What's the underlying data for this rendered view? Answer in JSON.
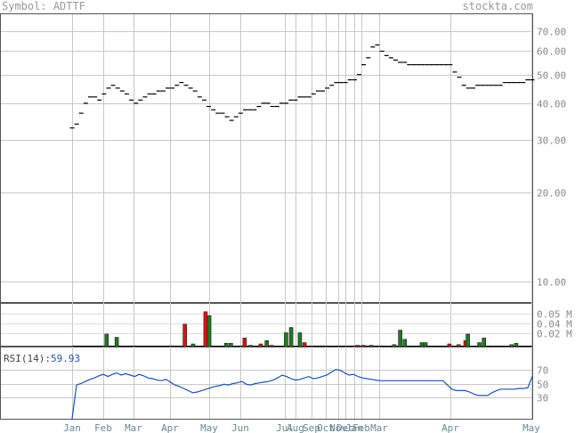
{
  "header": {
    "symbol_label": "Symbol:",
    "symbol": "ADTTF",
    "site": "stockta.com"
  },
  "chart_data": [
    {
      "type": "line",
      "name": "price",
      "yscale": "log",
      "ylim": [
        8.5,
        80
      ],
      "ytick_labels": [
        "70.00",
        "60.00",
        "50.00",
        "40.00",
        "30.00",
        "20.00",
        "10.00"
      ],
      "ytick_values": [
        70,
        60,
        50,
        40,
        30,
        20,
        10
      ],
      "x_labels": [
        "Jan",
        "Feb",
        "Mar",
        "Apr",
        "May",
        "Jun",
        "Jul",
        "Aug",
        "Sep",
        "Oct",
        "Nov",
        "Dec",
        "Jan",
        "Feb",
        "Mar",
        "Apr",
        "May"
      ],
      "values": [
        33,
        34,
        37,
        40,
        42,
        42,
        41,
        43,
        45,
        46,
        45,
        44,
        43,
        41,
        40,
        41,
        42,
        43,
        43,
        44,
        44,
        45,
        45,
        46,
        47,
        46,
        45,
        44,
        42,
        41,
        39,
        38,
        37,
        37,
        36,
        35,
        36,
        37,
        38,
        38,
        38,
        39,
        40,
        40,
        39,
        39,
        40,
        40,
        41,
        41,
        42,
        42,
        42,
        43,
        44,
        44,
        45,
        46,
        47,
        47,
        47,
        48,
        48,
        50,
        54,
        57,
        62,
        63,
        60,
        58,
        57,
        56,
        55,
        55,
        54,
        54,
        54,
        54,
        54,
        54,
        54,
        54,
        54,
        54,
        51,
        49,
        46,
        45,
        45,
        46,
        46,
        46,
        46,
        46,
        46,
        47,
        47,
        47,
        47,
        47,
        48,
        48
      ]
    },
    {
      "type": "bar",
      "name": "volume",
      "ylim": [
        0,
        0.065
      ],
      "ytick_labels": [
        "0.05 M",
        "0.04 M",
        "0.02 M"
      ],
      "ytick_values": [
        0.05,
        0.035,
        0.02
      ],
      "bars": [
        {
          "x": 0.075,
          "v": 0.019,
          "up": true
        },
        {
          "x": 0.097,
          "v": 0.014,
          "up": true
        },
        {
          "x": 0.245,
          "v": 0.034,
          "up": false
        },
        {
          "x": 0.263,
          "v": 0.004,
          "up": true
        },
        {
          "x": 0.29,
          "v": 0.053,
          "up": false
        },
        {
          "x": 0.298,
          "v": 0.047,
          "up": true
        },
        {
          "x": 0.335,
          "v": 0.005,
          "up": true
        },
        {
          "x": 0.345,
          "v": 0.005,
          "up": true
        },
        {
          "x": 0.375,
          "v": 0.013,
          "up": false
        },
        {
          "x": 0.388,
          "v": 0.002,
          "up": true
        },
        {
          "x": 0.41,
          "v": 0.004,
          "up": false
        },
        {
          "x": 0.423,
          "v": 0.009,
          "up": true
        },
        {
          "x": 0.433,
          "v": 0.002,
          "up": false
        },
        {
          "x": 0.465,
          "v": 0.021,
          "up": true
        },
        {
          "x": 0.476,
          "v": 0.029,
          "up": true
        },
        {
          "x": 0.495,
          "v": 0.021,
          "up": true
        },
        {
          "x": 0.505,
          "v": 0.006,
          "up": false
        },
        {
          "x": 0.62,
          "v": 0.002,
          "up": false
        },
        {
          "x": 0.633,
          "v": 0.002,
          "up": false
        },
        {
          "x": 0.65,
          "v": 0.002,
          "up": false
        },
        {
          "x": 0.7,
          "v": 0.003,
          "up": true
        },
        {
          "x": 0.713,
          "v": 0.025,
          "up": true
        },
        {
          "x": 0.723,
          "v": 0.011,
          "up": true
        },
        {
          "x": 0.76,
          "v": 0.006,
          "up": true
        },
        {
          "x": 0.768,
          "v": 0.006,
          "up": true
        },
        {
          "x": 0.82,
          "v": 0.004,
          "up": false
        },
        {
          "x": 0.84,
          "v": 0.003,
          "up": false
        },
        {
          "x": 0.855,
          "v": 0.009,
          "up": false
        },
        {
          "x": 0.86,
          "v": 0.019,
          "up": true
        },
        {
          "x": 0.885,
          "v": 0.006,
          "up": true
        },
        {
          "x": 0.895,
          "v": 0.013,
          "up": true
        },
        {
          "x": 0.955,
          "v": 0.003,
          "up": true
        },
        {
          "x": 0.965,
          "v": 0.005,
          "up": true
        }
      ]
    },
    {
      "type": "line",
      "name": "rsi",
      "title_label": "RSI(14):",
      "title_value": "59.93",
      "ylim": [
        0,
        100
      ],
      "ytick_labels": [
        "70",
        "50",
        "30"
      ],
      "ytick_values": [
        70,
        50,
        30
      ],
      "values": [
        0,
        48,
        50,
        53,
        56,
        58,
        61,
        63,
        60,
        63,
        65,
        62,
        64,
        62,
        60,
        63,
        61,
        58,
        57,
        55,
        54,
        56,
        52,
        48,
        46,
        43,
        40,
        37,
        38,
        40,
        42,
        44,
        46,
        47,
        49,
        48,
        50,
        51,
        53,
        49,
        48,
        50,
        51,
        52,
        53,
        55,
        58,
        62,
        60,
        57,
        55,
        56,
        58,
        60,
        57,
        58,
        60,
        62,
        66,
        70,
        69,
        65,
        62,
        63,
        60,
        58,
        57,
        56,
        55,
        54,
        54,
        54,
        54,
        54,
        54,
        54,
        54,
        54,
        54,
        54,
        54,
        54,
        54,
        54,
        48,
        42,
        40,
        40,
        40,
        38,
        35,
        33,
        33,
        33,
        37,
        40,
        42,
        42,
        42,
        42,
        43,
        43,
        44,
        60
      ]
    }
  ]
}
